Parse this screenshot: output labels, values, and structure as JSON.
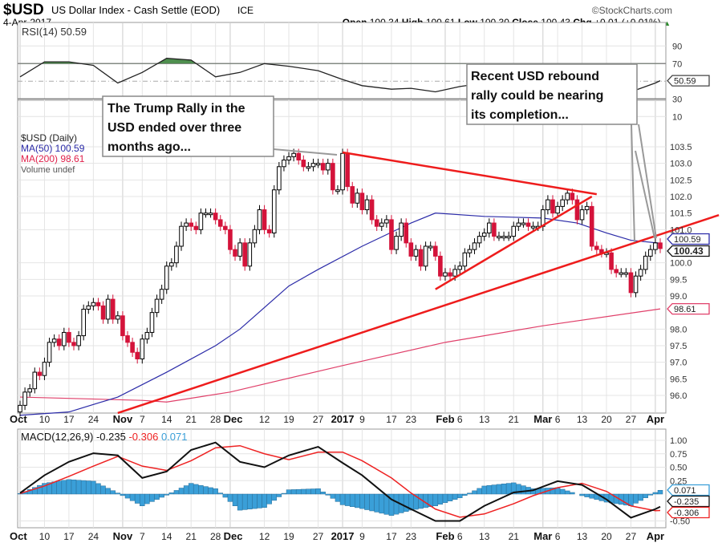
{
  "header": {
    "symbol": "$USD",
    "name": "US Dollar Index - Cash Settle (EOD)",
    "exchange": "ICE",
    "copyright": "©StockCharts.com",
    "date": "4-Apr-2017",
    "open_label": "Open",
    "open": "100.34",
    "high_label": "High",
    "high": "100.61",
    "low_label": "Low",
    "low": "100.30",
    "close_label": "Close",
    "close": "100.43",
    "chg_label": "Chg",
    "chg": "+0.01 (+0.01%)",
    "chg_arrow": "▲"
  },
  "colors": {
    "up": "#000000",
    "down": "#d4133a",
    "ma50": "#2b2ba8",
    "ma200": "#e0406a",
    "trend": "#ee1c1c",
    "macd": "#111111",
    "signal": "#ee2222",
    "hist": "#3a9fd8",
    "rsi_over": "#4f8f4f"
  },
  "annotations": [
    {
      "lines": [
        "The Trump Rally in the",
        "USD ended over three",
        "months ago..."
      ]
    },
    {
      "lines": [
        "Recent USD rebound",
        "rally could be nearing",
        "its completion..."
      ]
    }
  ],
  "chart_data": [
    {
      "type": "line",
      "panel": "rsi",
      "legend": "RSI(14) 50.59",
      "ylim": [
        0,
        100
      ],
      "ticks": [
        "90",
        "70",
        "30",
        "10"
      ],
      "last_tag": "50.59",
      "series": [
        {
          "name": "RSI(14)",
          "points": [
            [
              "2016-10-03",
              55
            ],
            [
              "2016-10-10",
              72
            ],
            [
              "2016-10-17",
              72
            ],
            [
              "2016-10-24",
              68
            ],
            [
              "2016-10-31",
              48
            ],
            [
              "2016-11-07",
              60
            ],
            [
              "2016-11-14",
              76
            ],
            [
              "2016-11-21",
              74
            ],
            [
              "2016-11-28",
              55
            ],
            [
              "2016-12-05",
              60
            ],
            [
              "2016-12-12",
              70
            ],
            [
              "2016-12-19",
              67
            ],
            [
              "2016-12-27",
              62
            ],
            [
              "2017-01-03",
              52
            ],
            [
              "2017-01-09",
              45
            ],
            [
              "2017-01-17",
              41
            ],
            [
              "2017-01-23",
              42
            ],
            [
              "2017-01-30",
              38
            ],
            [
              "2017-02-06",
              44
            ],
            [
              "2017-02-13",
              48
            ],
            [
              "2017-02-21",
              50
            ],
            [
              "2017-02-27",
              56
            ],
            [
              "2017-03-06",
              58
            ],
            [
              "2017-03-13",
              48
            ],
            [
              "2017-03-20",
              40
            ],
            [
              "2017-03-27",
              38
            ],
            [
              "2017-04-03",
              48
            ],
            [
              "2017-04-04",
              50.59
            ]
          ]
        }
      ]
    },
    {
      "type": "candlestick",
      "panel": "price",
      "legend": [
        "$USD (Daily)",
        "MA(50) 100.59",
        "MA(200) 98.61",
        "Volume undef"
      ],
      "ylim": [
        95.5,
        104
      ],
      "yticks": [
        "103.5",
        "103.0",
        "102.5",
        "102.0",
        "101.5",
        "101.0",
        "100.0",
        "99.5",
        "99.0",
        "98.0",
        "97.5",
        "97.0",
        "96.5",
        "96.0"
      ],
      "tags": {
        "ma50": "100.59",
        "close": "100.43",
        "ma200": "98.61"
      },
      "weekly_closes": [
        {
          "week": "2016-10-03",
          "closes": [
            95.7,
            96.1,
            96.2,
            96.7,
            96.6
          ]
        },
        {
          "week": "2016-10-10",
          "closes": [
            97.0,
            97.6,
            97.7,
            97.5,
            97.9
          ]
        },
        {
          "week": "2016-10-17",
          "closes": [
            97.6,
            97.5,
            97.8,
            98.6,
            98.7
          ]
        },
        {
          "week": "2016-10-24",
          "closes": [
            98.8,
            98.7,
            98.3,
            98.9,
            98.3
          ]
        },
        {
          "week": "2016-10-31",
          "closes": [
            98.4,
            97.8,
            97.6,
            97.3,
            97.1
          ]
        },
        {
          "week": "2016-11-07",
          "closes": [
            97.7,
            97.9,
            98.5,
            98.9,
            99.2
          ]
        },
        {
          "week": "2016-11-14",
          "closes": [
            99.9,
            100.0,
            100.5,
            101.1,
            101.2
          ]
        },
        {
          "week": "2016-11-21",
          "closes": [
            101.1,
            101.0,
            101.5,
            101.5,
            101.5
          ]
        },
        {
          "week": "2016-11-28",
          "closes": [
            101.3,
            101.1,
            101.0,
            100.4,
            100.2
          ]
        },
        {
          "week": "2016-12-05",
          "closes": [
            100.6,
            99.9,
            100.6,
            101.0,
            101.6
          ]
        },
        {
          "week": "2016-12-12",
          "closes": [
            101.0,
            100.9,
            102.2,
            102.9,
            103.1
          ]
        },
        {
          "week": "2016-12-19",
          "closes": [
            103.2,
            103.3,
            103.1,
            102.9,
            102.9
          ]
        },
        {
          "week": "2016-12-26",
          "closes": [
            103.0,
            103.0,
            102.8,
            103.0,
            102.2
          ]
        },
        {
          "week": "2017-01-02",
          "closes": [
            102.2,
            103.3,
            102.3,
            101.8,
            102.1
          ]
        },
        {
          "week": "2017-01-09",
          "closes": [
            101.6,
            101.9,
            101.3,
            101.1,
            101.2
          ]
        },
        {
          "week": "2017-01-16",
          "closes": [
            101.3,
            100.4,
            100.8,
            101.2,
            100.6
          ]
        },
        {
          "week": "2017-01-23",
          "closes": [
            100.2,
            100.4,
            99.9,
            100.5,
            100.5
          ]
        },
        {
          "week": "2017-01-30",
          "closes": [
            100.2,
            99.6,
            99.7,
            99.6,
            99.8
          ]
        },
        {
          "week": "2017-02-06",
          "closes": [
            99.9,
            100.3,
            100.4,
            100.6,
            100.8
          ]
        },
        {
          "week": "2017-02-13",
          "closes": [
            100.9,
            101.2,
            100.8,
            100.8,
            100.8
          ]
        },
        {
          "week": "2017-02-20",
          "closes": [
            100.8,
            101.1,
            101.2,
            101.2,
            101.1
          ]
        },
        {
          "week": "2017-02-27",
          "closes": [
            101.1,
            101.1,
            101.6,
            101.9,
            101.5
          ]
        },
        {
          "week": "2017-03-06",
          "closes": [
            101.7,
            101.9,
            102.1,
            101.9,
            101.3
          ]
        },
        {
          "week": "2017-03-13",
          "closes": [
            101.6,
            101.7,
            100.5,
            100.4,
            100.3
          ]
        },
        {
          "week": "2017-03-20",
          "closes": [
            100.3,
            99.8,
            99.7,
            99.7,
            99.7
          ]
        },
        {
          "week": "2017-03-27",
          "closes": [
            99.1,
            99.6,
            99.8,
            100.2,
            100.4
          ]
        },
        {
          "week": "2017-04-03",
          "closes": [
            100.6,
            100.43
          ]
        }
      ],
      "ma50": [
        [
          "2016-10-03",
          95.4
        ],
        [
          "2016-10-17",
          95.5
        ],
        [
          "2016-10-31",
          95.95
        ],
        [
          "2016-11-14",
          96.7
        ],
        [
          "2016-11-28",
          97.5
        ],
        [
          "2016-12-05",
          98.0
        ],
        [
          "2016-12-19",
          99.3
        ],
        [
          "2016-12-27",
          99.8
        ],
        [
          "2017-01-09",
          100.5
        ],
        [
          "2017-01-23",
          101.2
        ],
        [
          "2017-01-30",
          101.5
        ],
        [
          "2017-02-13",
          101.4
        ],
        [
          "2017-03-01",
          101.35
        ],
        [
          "2017-03-10",
          101.2
        ],
        [
          "2017-03-20",
          100.9
        ],
        [
          "2017-03-27",
          100.68
        ],
        [
          "2017-04-04",
          100.59
        ]
      ],
      "ma200": [
        [
          "2016-10-03",
          95.95
        ],
        [
          "2016-11-07",
          95.85
        ],
        [
          "2016-11-14",
          95.8
        ],
        [
          "2016-12-01",
          96.1
        ],
        [
          "2017-01-03",
          96.9
        ],
        [
          "2017-02-01",
          97.6
        ],
        [
          "2017-03-01",
          98.1
        ],
        [
          "2017-04-04",
          98.61
        ]
      ],
      "trendlines": [
        {
          "from": [
            "2016-10-31",
            95.47
          ],
          "to": [
            "2017-04-20",
            101.44
          ]
        },
        {
          "from": [
            "2017-01-03",
            103.33
          ],
          "to": [
            "2017-03-16",
            102.07
          ]
        },
        {
          "from": [
            "2017-01-30",
            99.2
          ],
          "to": [
            "2017-03-15",
            102.0
          ]
        }
      ]
    },
    {
      "type": "line",
      "panel": "macd",
      "legend": {
        "name": "MACD(12,26,9)",
        "macd": "-0.235",
        "signal": "-0.306",
        "hist": "0.071"
      },
      "ylim": [
        -0.6,
        1.1
      ],
      "ticks": [
        "1.00",
        "0.75",
        "0.50",
        "0.25",
        "-0.50"
      ],
      "series": [
        {
          "name": "MACD",
          "points": [
            [
              "2016-10-03",
              0.02
            ],
            [
              "2016-10-10",
              0.35
            ],
            [
              "2016-10-17",
              0.6
            ],
            [
              "2016-10-24",
              0.76
            ],
            [
              "2016-10-31",
              0.72
            ],
            [
              "2016-11-07",
              0.3
            ],
            [
              "2016-11-14",
              0.42
            ],
            [
              "2016-11-21",
              0.82
            ],
            [
              "2016-11-28",
              0.96
            ],
            [
              "2016-12-05",
              0.6
            ],
            [
              "2016-12-12",
              0.5
            ],
            [
              "2016-12-19",
              0.72
            ],
            [
              "2016-12-27",
              0.88
            ],
            [
              "2017-01-03",
              0.58
            ],
            [
              "2017-01-09",
              0.35
            ],
            [
              "2017-01-17",
              -0.1
            ],
            [
              "2017-01-23",
              -0.28
            ],
            [
              "2017-01-30",
              -0.5
            ],
            [
              "2017-02-06",
              -0.5
            ],
            [
              "2017-02-13",
              -0.22
            ],
            [
              "2017-02-21",
              0.03
            ],
            [
              "2017-02-27",
              0.07
            ],
            [
              "2017-03-06",
              0.24
            ],
            [
              "2017-03-13",
              0.17
            ],
            [
              "2017-03-20",
              -0.1
            ],
            [
              "2017-03-27",
              -0.44
            ],
            [
              "2017-04-03",
              -0.28
            ],
            [
              "2017-04-04",
              -0.235
            ]
          ]
        },
        {
          "name": "Signal",
          "points": [
            [
              "2016-10-03",
              0.01
            ],
            [
              "2016-10-10",
              0.15
            ],
            [
              "2016-10-17",
              0.33
            ],
            [
              "2016-10-24",
              0.52
            ],
            [
              "2016-10-31",
              0.7
            ],
            [
              "2016-11-07",
              0.52
            ],
            [
              "2016-11-14",
              0.44
            ],
            [
              "2016-11-21",
              0.62
            ],
            [
              "2016-11-28",
              0.86
            ],
            [
              "2016-12-05",
              0.9
            ],
            [
              "2016-12-12",
              0.75
            ],
            [
              "2016-12-19",
              0.64
            ],
            [
              "2016-12-27",
              0.78
            ],
            [
              "2017-01-03",
              0.78
            ],
            [
              "2017-01-09",
              0.62
            ],
            [
              "2017-01-17",
              0.3
            ],
            [
              "2017-01-23",
              0.02
            ],
            [
              "2017-01-30",
              -0.28
            ],
            [
              "2017-02-06",
              -0.43
            ],
            [
              "2017-02-13",
              -0.37
            ],
            [
              "2017-02-21",
              -0.18
            ],
            [
              "2017-02-27",
              -0.03
            ],
            [
              "2017-03-06",
              0.12
            ],
            [
              "2017-03-13",
              0.2
            ],
            [
              "2017-03-20",
              0.05
            ],
            [
              "2017-03-27",
              -0.22
            ],
            [
              "2017-04-03",
              -0.31
            ],
            [
              "2017-04-04",
              -0.306
            ]
          ]
        }
      ]
    }
  ],
  "x_axis": [
    {
      "label": "Oct",
      "date": "2016-10-03",
      "bold": true
    },
    {
      "label": "10",
      "date": "2016-10-10"
    },
    {
      "label": "17",
      "date": "2016-10-17"
    },
    {
      "label": "24",
      "date": "2016-10-24"
    },
    {
      "label": "Nov",
      "date": "2016-11-01",
      "bold": true
    },
    {
      "label": "7",
      "date": "2016-11-07"
    },
    {
      "label": "14",
      "date": "2016-11-14"
    },
    {
      "label": "21",
      "date": "2016-11-21"
    },
    {
      "label": "28",
      "date": "2016-11-28"
    },
    {
      "label": "Dec",
      "date": "2016-12-01",
      "bold": true
    },
    {
      "label": "12",
      "date": "2016-12-12"
    },
    {
      "label": "19",
      "date": "2016-12-19"
    },
    {
      "label": "27",
      "date": "2016-12-27"
    },
    {
      "label": "2017",
      "date": "2017-01-03",
      "bold": true
    },
    {
      "label": "9",
      "date": "2017-01-09"
    },
    {
      "label": "17",
      "date": "2017-01-17"
    },
    {
      "label": "23",
      "date": "2017-01-23"
    },
    {
      "label": "Feb",
      "date": "2017-02-01",
      "bold": true
    },
    {
      "label": "6",
      "date": "2017-02-06"
    },
    {
      "label": "13",
      "date": "2017-02-13"
    },
    {
      "label": "21",
      "date": "2017-02-21"
    },
    {
      "label": "Mar",
      "date": "2017-03-01",
      "bold": true
    },
    {
      "label": "6",
      "date": "2017-03-06"
    },
    {
      "label": "13",
      "date": "2017-03-13"
    },
    {
      "label": "20",
      "date": "2017-03-20"
    },
    {
      "label": "27",
      "date": "2017-03-27"
    },
    {
      "label": "Apr",
      "date": "2017-04-03",
      "bold": true
    }
  ]
}
